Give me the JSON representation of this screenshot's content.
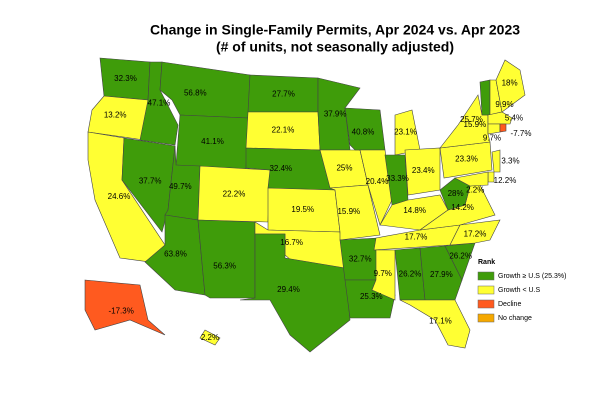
{
  "title": "Change in Single-Family Permits, Apr 2024 vs. Apr 2023",
  "subtitle": "(# of units, not seasonally adjusted)",
  "legend": {
    "title": "Rank",
    "items": [
      {
        "label": "Growth ≥ U.S (25.3%)",
        "color": "#3f9c0a"
      },
      {
        "label": "Growth < U.S",
        "color": "#ffff33"
      },
      {
        "label": "Decline",
        "color": "#ff5a1f"
      },
      {
        "label": "No change",
        "color": "#f5a800"
      }
    ]
  },
  "regions": {
    "values": [
      32.3,
      13.2,
      24.6,
      47.1,
      37.7,
      56.8,
      41.1,
      49.7,
      63.8,
      22.2,
      56.3,
      27.7,
      22.1,
      32.4,
      19.5,
      16.7,
      29.4,
      37.9,
      25,
      15.9,
      32.7,
      25.3,
      40.8,
      20.4,
      23.1,
      33.3,
      23.4,
      14.8,
      17.7,
      9.7,
      26.2,
      27.9,
      17.1,
      26.2,
      17.2,
      14.2,
      28,
      23.3,
      15.9,
      25.7,
      9.9,
      18,
      5.4,
      9.7,
      -7.7,
      3.3,
      12.2,
      2.2,
      -17.3,
      2.2
    ],
    "value_labels": [
      "32.3%",
      "13.2%",
      "24.6%",
      "47.1%",
      "37.7%",
      "56.8%",
      "41.1%",
      "49.7%",
      "63.8%",
      "22.2%",
      "56.3%",
      "27.7%",
      "22.1%",
      "32.4%",
      "19.5%",
      "16.7%",
      "29.4%",
      "37.9%",
      "25%",
      "15.9%",
      "32.7%",
      "25.3%",
      "40.8%",
      "20.4%",
      "23.1%",
      "33.3%",
      "23.4%",
      "14.8%",
      "17.7%",
      "9.7%",
      "26.2%",
      "27.9%",
      "17.1%",
      "26.2%",
      "17.2%",
      "14.2%",
      "28%",
      "23.3%",
      "15.9%",
      "25.7%",
      "9.9%",
      "18%",
      "5.4%",
      "9.7%",
      "-7.7%",
      "3.3%",
      "12.2%",
      "2.2%",
      "-17.3%",
      "2.2%"
    ],
    "colors": [
      "#3f9c0a",
      "#ffff33",
      "#ffff33",
      "#3f9c0a",
      "#3f9c0a",
      "#3f9c0a",
      "#3f9c0a",
      "#3f9c0a",
      "#3f9c0a",
      "#ffff33",
      "#3f9c0a",
      "#3f9c0a",
      "#ffff33",
      "#3f9c0a",
      "#ffff33",
      "#ffff33",
      "#3f9c0a",
      "#3f9c0a",
      "#ffff33",
      "#ffff33",
      "#3f9c0a",
      "#3f9c0a",
      "#3f9c0a",
      "#ffff33",
      "#ffff33",
      "#3f9c0a",
      "#ffff33",
      "#ffff33",
      "#ffff33",
      "#ffff33",
      "#3f9c0a",
      "#3f9c0a",
      "#ffff33",
      "#3f9c0a",
      "#ffff33",
      "#ffff33",
      "#3f9c0a",
      "#ffff33",
      "#ffff33",
      "#3f9c0a",
      "#ffff33",
      "#ffff33",
      "#ffff33",
      "#ffff33",
      "#ff5a1f",
      "#ffff33",
      "#ffff33",
      "#ffff33",
      "#ff5a1f",
      "#ffff33"
    ]
  }
}
